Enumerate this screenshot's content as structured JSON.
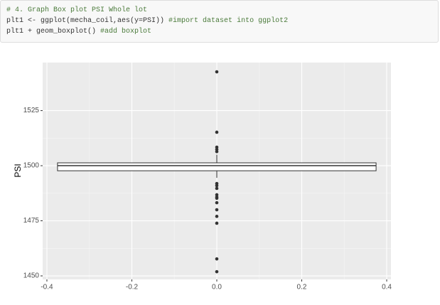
{
  "code": {
    "lines": [
      [
        {
          "text": "# 4. Graph Box plot PSI Whole lot",
          "kind": "comment"
        }
      ],
      [
        {
          "text": "plt1 <- ggplot(mecha_coil,aes(y=PSI)) ",
          "kind": "code"
        },
        {
          "text": "#import dataset into ggplot2",
          "kind": "comment"
        }
      ],
      [
        {
          "text": "plt1 + geom_boxplot() ",
          "kind": "code"
        },
        {
          "text": "#add boxplot",
          "kind": "comment"
        }
      ]
    ]
  },
  "chart_data": {
    "type": "box",
    "y_label": "PSI",
    "xlim": [
      -0.41,
      0.41
    ],
    "xticks": [
      -0.4,
      -0.2,
      {
        "value": 0,
        "label": "0.0"
      },
      0.2,
      0.4
    ],
    "ylim": [
      1448.4,
      1546.8
    ],
    "yticks": [
      1450,
      1475,
      1500,
      1525
    ],
    "grid": true,
    "box": {
      "box_x": [
        -0.375,
        0.375
      ],
      "q1": 1497.7,
      "median": 1500,
      "q3": 1501.3,
      "whisker_low": 1494.5,
      "whisker_high": 1505,
      "outlier_x": 0,
      "outliers": [
        1542.6,
        1515.2,
        1508.4,
        1507.4,
        1506.4,
        1491.9,
        1491,
        1489.7,
        1486.8,
        1485.8,
        1485.2,
        1483.2,
        1480,
        1477,
        1473.9,
        1457.7,
        1451.9
      ]
    }
  }
}
